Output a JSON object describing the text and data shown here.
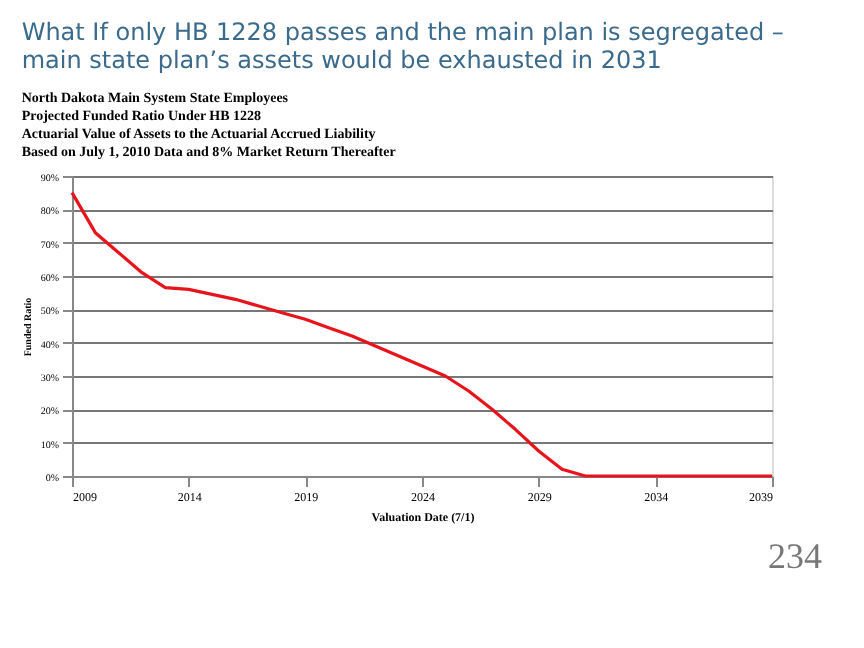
{
  "chart_data": {
    "type": "line",
    "title": "What If only HB 1228 passes and the main plan is segregated – main state plan’s assets would be exhausted in 2031",
    "subtitle": [
      "North Dakota Main System State Employees",
      "Projected Funded Ratio Under HB 1228",
      "Actuarial Value of Assets to the Actuarial Accrued Liability",
      "Based on July 1, 2010 Data and 8% Market Return Thereafter"
    ],
    "xlabel": "Valuation Date (7/1)",
    "ylabel": "Funded Ratio",
    "x": [
      2009,
      2010,
      2011,
      2012,
      2013,
      2014,
      2015,
      2016,
      2017,
      2018,
      2019,
      2020,
      2021,
      2022,
      2023,
      2024,
      2025,
      2026,
      2027,
      2028,
      2029,
      2030,
      2031,
      2032,
      2033,
      2034,
      2035,
      2036,
      2037,
      2038,
      2039
    ],
    "series": [
      {
        "color": "#e8141c",
        "values": [
          85,
          73,
          67,
          61,
          56.5,
          56,
          54.5,
          53,
          51,
          49,
          47,
          44.5,
          42,
          39,
          36,
          33,
          30,
          25.5,
          20,
          14,
          7.5,
          2,
          0,
          0,
          0,
          0,
          0,
          0,
          0,
          0,
          0
        ]
      }
    ],
    "xlim": [
      2009,
      2039
    ],
    "xticks": [
      2009,
      2014,
      2019,
      2024,
      2029,
      2034,
      2039
    ],
    "ylim": [
      0,
      90
    ],
    "yticks": [
      {
        "value": 0,
        "label": "0%"
      },
      {
        "value": 10,
        "label": "10%"
      },
      {
        "value": 20,
        "label": "20%"
      },
      {
        "value": 30,
        "label": "30%"
      },
      {
        "value": 40,
        "label": "40%"
      },
      {
        "value": 50,
        "label": "50%"
      },
      {
        "value": 60,
        "label": "60%"
      },
      {
        "value": 70,
        "label": "70%"
      },
      {
        "value": 80,
        "label": "80%"
      },
      {
        "value": 90,
        "label": "90%"
      }
    ],
    "grid": "y",
    "marker": "none",
    "line_style": "solid",
    "annotations": [
      "234"
    ]
  }
}
